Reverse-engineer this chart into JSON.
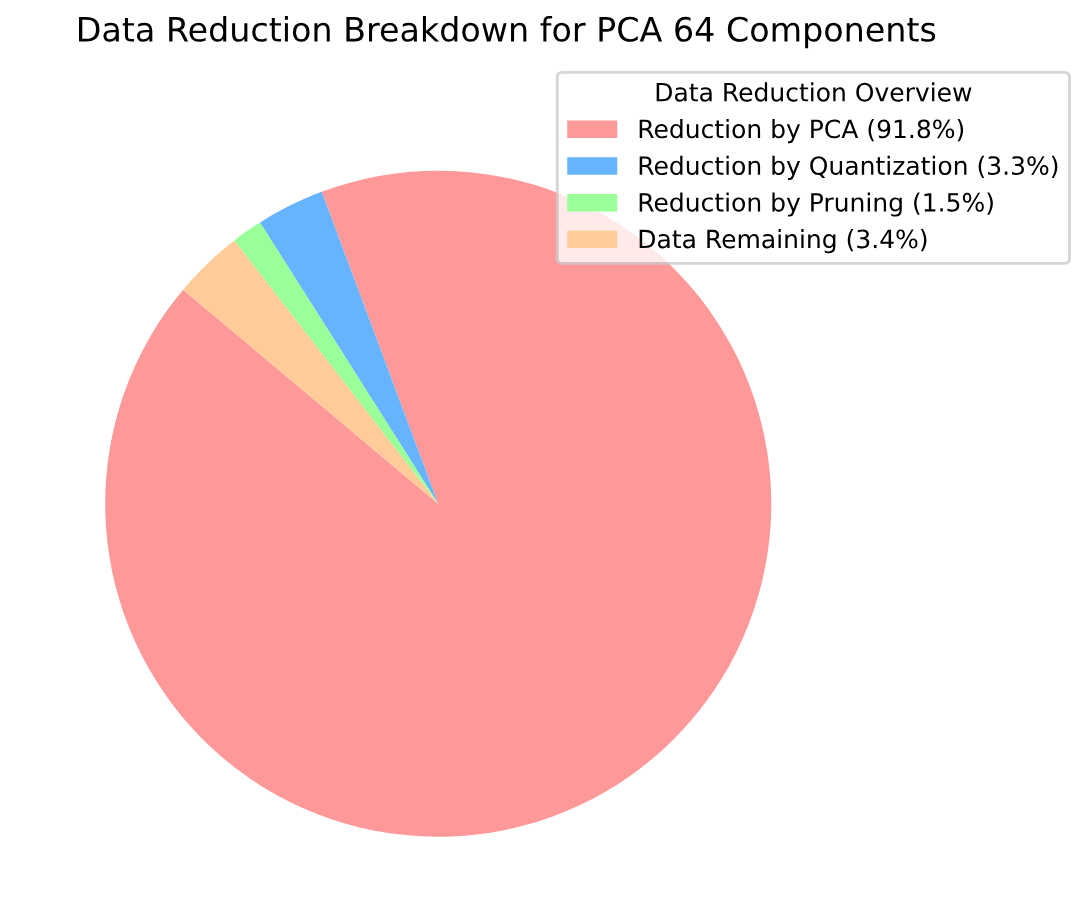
{
  "chart_data": {
    "type": "pie",
    "title": "Data Reduction Breakdown for PCA 64 Components",
    "legend_title": "Data Reduction Overview",
    "categories": [
      "Reduction by PCA (91.8%)",
      "Reduction by Quantization (3.3%)",
      "Reduction by Pruning (1.5%)",
      "Data Remaining (3.4%)"
    ],
    "values": [
      91.8,
      3.3,
      1.5,
      3.4
    ],
    "colors": [
      "#ff9999",
      "#66b3ff",
      "#99ff99",
      "#ffcc99"
    ],
    "legend": "top right"
  }
}
